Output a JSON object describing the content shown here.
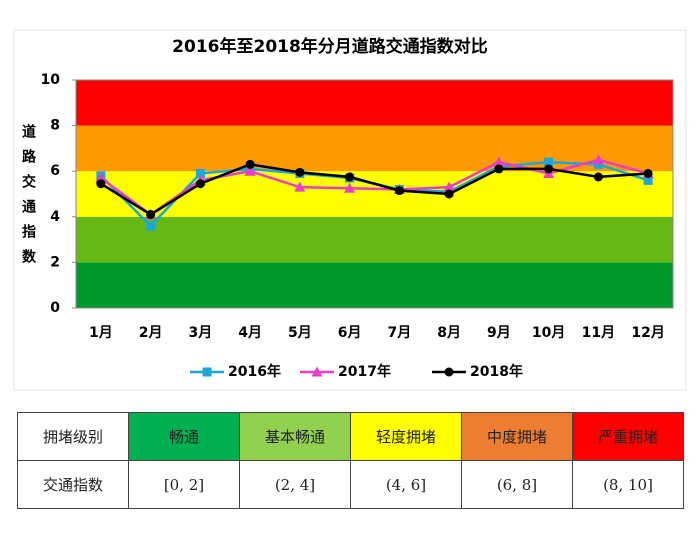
{
  "chart_data": {
    "type": "line",
    "title": "2016年至2018年分月道路交通指数对比",
    "y_label": "道路交通指数",
    "categories": [
      "1月",
      "2月",
      "3月",
      "4月",
      "5月",
      "6月",
      "7月",
      "8月",
      "9月",
      "10月",
      "11月",
      "12月"
    ],
    "series": [
      {
        "name": "2016年",
        "color": "#1ea6d6",
        "marker": "square",
        "values": [
          5.8,
          3.6,
          5.9,
          6.1,
          5.9,
          5.7,
          5.2,
          5.1,
          6.2,
          6.4,
          6.3,
          5.6
        ]
      },
      {
        "name": "2017年",
        "color": "#e83ec8",
        "marker": "triangle",
        "values": [
          5.7,
          4.1,
          5.6,
          6.0,
          5.3,
          5.25,
          5.2,
          5.3,
          6.4,
          5.9,
          6.5,
          5.9
        ]
      },
      {
        "name": "2018年",
        "color": "#000000",
        "marker": "circle",
        "values": [
          5.45,
          4.1,
          5.45,
          6.3,
          5.95,
          5.75,
          5.15,
          5.0,
          6.1,
          6.1,
          5.75,
          5.9
        ]
      }
    ],
    "bands": [
      {
        "from": 0,
        "to": 2,
        "color": "#009a2a"
      },
      {
        "from": 2,
        "to": 4,
        "color": "#66b814"
      },
      {
        "from": 4,
        "to": 6,
        "color": "#ffff00"
      },
      {
        "from": 6,
        "to": 8,
        "color": "#ff9900"
      },
      {
        "from": 8,
        "to": 10,
        "color": "#ff0000"
      }
    ],
    "ylim": [
      0,
      10
    ],
    "yticks": [
      0,
      2,
      4,
      6,
      8,
      10
    ],
    "grid": false,
    "legend": "bottom"
  },
  "table": {
    "rows": [
      [
        "拥堵级别",
        "畅通",
        "基本畅通",
        "轻度拥堵",
        "中度拥堵",
        "严重拥堵"
      ],
      [
        "交通指数",
        "[0, 2]",
        "(2, 4]",
        "(4, 6]",
        "(6, 8]",
        "(8, 10]"
      ]
    ],
    "header_colors": [
      "#00b050",
      "#92d050",
      "#ffff00",
      "#ed7d31",
      "#ff0000"
    ]
  }
}
